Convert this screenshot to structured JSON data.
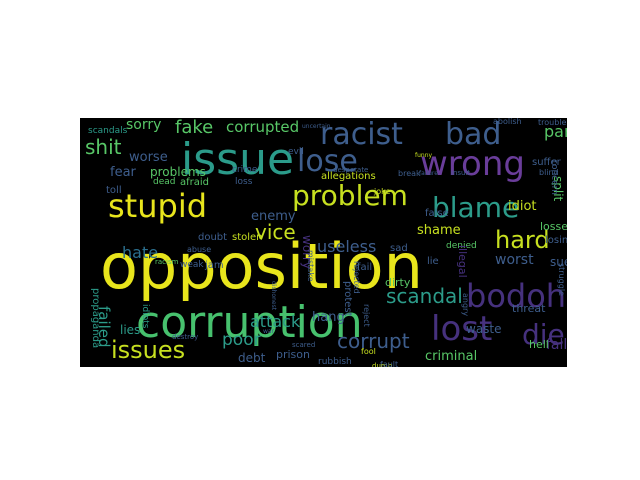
{
  "cloud": {
    "background": "#000000",
    "palette": [
      "#e8e51c",
      "#47c16e",
      "#2b9b8a",
      "#3e5e8d",
      "#46317e",
      "#58c767",
      "#1f948c",
      "#c7e020"
    ],
    "words": [
      {
        "text": "opposition",
        "color": "#e8e51c"
      },
      {
        "text": "corruption",
        "color": "#47c16e"
      },
      {
        "text": "issue",
        "color": "#2b9b8a"
      },
      {
        "text": "wrong",
        "color": "#6a3d9a"
      },
      {
        "text": "stupid",
        "color": "#e8e51c"
      },
      {
        "text": "problem",
        "color": "#c7e020"
      },
      {
        "text": "racist",
        "color": "#3e5e8d"
      },
      {
        "text": "bad",
        "color": "#3e5e8d"
      },
      {
        "text": "lose",
        "color": "#3e5e8d"
      },
      {
        "text": "blame",
        "color": "#2c9c8a"
      },
      {
        "text": "hard",
        "color": "#c7e020"
      },
      {
        "text": "bodoh",
        "color": "#46317e"
      },
      {
        "text": "lost",
        "color": "#46317e"
      },
      {
        "text": "issues",
        "color": "#c7e020"
      },
      {
        "text": "hate",
        "color": "#2b6f8e"
      },
      {
        "text": "vice",
        "color": "#c7e020"
      },
      {
        "text": "scandal",
        "color": "#2c9c8a"
      },
      {
        "text": "corrupt",
        "color": "#3e5e8d"
      },
      {
        "text": "attack",
        "color": "#2c9c8a"
      },
      {
        "text": "poor",
        "color": "#2c9c8a"
      },
      {
        "text": "useless",
        "color": "#3e5e8d"
      },
      {
        "text": "die",
        "color": "#46317e"
      },
      {
        "text": "fake",
        "color": "#58c767"
      },
      {
        "text": "corrupted",
        "color": "#58c767"
      },
      {
        "text": "shit",
        "color": "#58c767"
      },
      {
        "text": "failed",
        "color": "#2c9c8a"
      },
      {
        "text": "pan",
        "color": "#58c767"
      },
      {
        "text": "sorry",
        "color": "#58c767"
      },
      {
        "text": "worse",
        "color": "#3e5e8d"
      },
      {
        "text": "problems",
        "color": "#58c767"
      },
      {
        "text": "fear",
        "color": "#3e5e8d"
      },
      {
        "text": "enemy",
        "color": "#3e5e8d"
      },
      {
        "text": "worry",
        "color": "#46317e"
      },
      {
        "text": "hang",
        "color": "#3e5e8d"
      },
      {
        "text": "lies",
        "color": "#2c9c8a"
      },
      {
        "text": "debt",
        "color": "#3e5e8d"
      },
      {
        "text": "prison",
        "color": "#3e5e8d"
      },
      {
        "text": "criminal",
        "color": "#58c767"
      },
      {
        "text": "worst",
        "color": "#3e5e8d"
      },
      {
        "text": "idiot",
        "color": "#c7e020"
      },
      {
        "text": "shame",
        "color": "#c7e020"
      },
      {
        "text": "split",
        "color": "#58c767"
      },
      {
        "text": "fall",
        "color": "#46317e"
      },
      {
        "text": "propaganda",
        "color": "#2c9c8a"
      },
      {
        "text": "scandals",
        "color": "#2c9c8a"
      },
      {
        "text": "toll",
        "color": "#3e5e8d"
      },
      {
        "text": "dead",
        "color": "#58c767"
      },
      {
        "text": "afraid",
        "color": "#58c767"
      },
      {
        "text": "loss",
        "color": "#3e5e8d"
      },
      {
        "text": "crime",
        "color": "#3e5e8d"
      },
      {
        "text": "evil",
        "color": "#3e5e8d"
      },
      {
        "text": "allegations",
        "color": "#c7e020"
      },
      {
        "text": "break",
        "color": "#3e5e8d"
      },
      {
        "text": "failure",
        "color": "#3e5e8d"
      },
      {
        "text": "insult",
        "color": "#3e5e8d"
      },
      {
        "text": "suffer",
        "color": "#3e5e8d"
      },
      {
        "text": "concern",
        "color": "#3e5e8d"
      },
      {
        "text": "joke",
        "color": "#c7e020"
      },
      {
        "text": "funny",
        "color": "#c7e020"
      },
      {
        "text": "doubt",
        "color": "#3e5e8d"
      },
      {
        "text": "stolen",
        "color": "#c7e020"
      },
      {
        "text": "sad",
        "color": "#3e5e8d"
      },
      {
        "text": "false",
        "color": "#3e5e8d"
      },
      {
        "text": "lie",
        "color": "#3e5e8d"
      },
      {
        "text": "denied",
        "color": "#58c767"
      },
      {
        "text": "fail",
        "color": "#3e5e8d"
      },
      {
        "text": "illegal",
        "color": "#46317e"
      },
      {
        "text": "dirty",
        "color": "#58c767"
      },
      {
        "text": "protest",
        "color": "#3e5e8d"
      },
      {
        "text": "losses",
        "color": "#58c767"
      },
      {
        "text": "losing",
        "color": "#3e5e8d"
      },
      {
        "text": "waste",
        "color": "#3e5e8d"
      },
      {
        "text": "threat",
        "color": "#3e5e8d"
      },
      {
        "text": "hell",
        "color": "#58c767"
      },
      {
        "text": "weak",
        "color": "#3e5e8d"
      },
      {
        "text": "jam",
        "color": "#3e5e8d"
      },
      {
        "text": "racism",
        "color": "#58c767"
      },
      {
        "text": "abuse",
        "color": "#3e5e8d"
      },
      {
        "text": "rubbish",
        "color": "#3e5e8d"
      },
      {
        "text": "fool",
        "color": "#c7e020"
      },
      {
        "text": "dumb",
        "color": "#c7e020"
      },
      {
        "text": "idiots",
        "color": "#2c9c8a"
      },
      {
        "text": "destroy",
        "color": "#3e5e8d"
      },
      {
        "text": "scared",
        "color": "#3e5e8d"
      },
      {
        "text": "war",
        "color": "#3e5e8d"
      },
      {
        "text": "guilty",
        "color": "#58c767"
      },
      {
        "text": "abolish",
        "color": "#3e5e8d"
      },
      {
        "text": "trouble",
        "color": "#3e5e8d"
      },
      {
        "text": "desperate",
        "color": "#3e5e8d"
      },
      {
        "text": "mistake",
        "color": "#3e5e8d"
      },
      {
        "text": "reject",
        "color": "#3e5e8d"
      },
      {
        "text": "rejected",
        "color": "#3e5e8d"
      },
      {
        "text": "blind",
        "color": "#3e5e8d"
      },
      {
        "text": "struggle",
        "color": "#3e5e8d"
      },
      {
        "text": "angry",
        "color": "#3e5e8d"
      },
      {
        "text": "sue",
        "color": "#3e5e8d"
      },
      {
        "text": "fault",
        "color": "#3e5e8d"
      },
      {
        "text": "uncertain",
        "color": "#3e5e8d"
      },
      {
        "text": "dishonest",
        "color": "#3e5e8d"
      }
    ]
  }
}
